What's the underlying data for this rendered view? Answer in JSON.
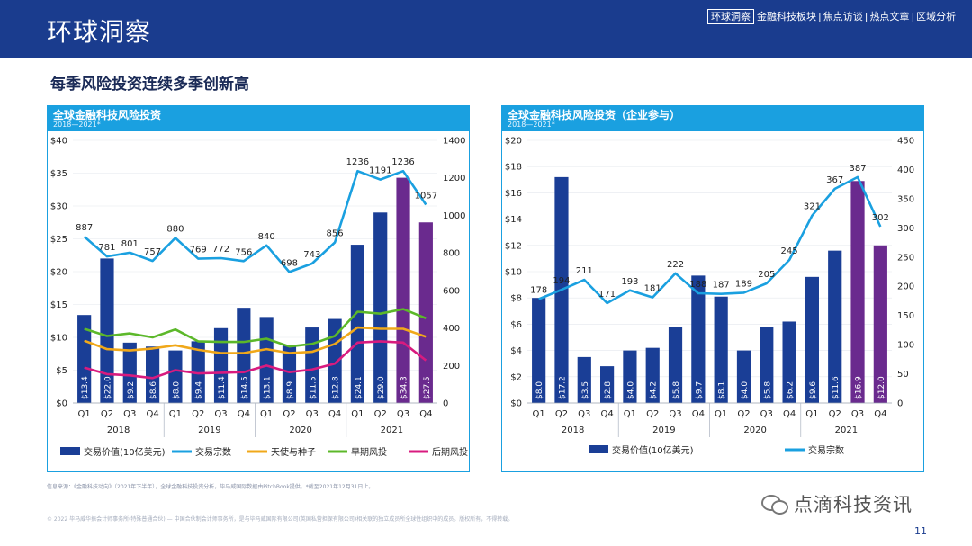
{
  "header": {
    "title": "环球洞察",
    "nav_active": "环球洞察",
    "nav_items": [
      "金融科技板块",
      "焦点访谈",
      "热点文章",
      "区域分析"
    ]
  },
  "subtitle": "每季风险投资连续多季创新高",
  "footer": {
    "note": "信息来源：《金融科技动向》（2021年下半年），全球金融科技投资分析，毕马威国际数据由PitchBook提供。*截至2021年12月31日止。",
    "copyright": "© 2022 毕马威华振会计师事务所(特殊普通合伙) — 中国合伙制会计师事务所，是与毕马威国际有限公司(英国私营担保有限公司)相关联的独立成员所全球性组织中的成员。版权所有，不得转载。",
    "page": "11",
    "watermark": "点滴科技资讯"
  },
  "chart_data": [
    {
      "type": "bar",
      "title": "全球金融科技风险投资",
      "subtitle": "2018—2021*",
      "groups": [
        {
          "year": "2018",
          "quarters": [
            "Q1",
            "Q2",
            "Q3",
            "Q4"
          ]
        },
        {
          "year": "2019",
          "quarters": [
            "Q1",
            "Q2",
            "Q3",
            "Q4"
          ]
        },
        {
          "year": "2020",
          "quarters": [
            "Q1",
            "Q2",
            "Q3",
            "Q4"
          ]
        },
        {
          "year": "2021",
          "quarters": [
            "Q1",
            "Q2",
            "Q3",
            "Q4"
          ]
        }
      ],
      "bars": {
        "name": "交易价值(10亿美元)",
        "values": [
          13.4,
          22.0,
          9.2,
          8.6,
          8.0,
          9.4,
          11.4,
          14.5,
          13.1,
          8.9,
          11.5,
          12.8,
          24.1,
          29.0,
          34.3,
          27.5
        ],
        "labels": [
          "$13.4",
          "$22.0",
          "$9.2",
          "$8.6",
          "$8.0",
          "$9.4",
          "$11.4",
          "$14.5",
          "$13.1",
          "$8.9",
          "$11.5",
          "$12.8",
          "$24.1",
          "$29.0",
          "$34.3",
          "$27.5"
        ],
        "colors": [
          "#1a3e96",
          "#1a3e96",
          "#1a3e96",
          "#1a3e96",
          "#1a3e96",
          "#1a3e96",
          "#1a3e96",
          "#1a3e96",
          "#1a3e96",
          "#1a3e96",
          "#1a3e96",
          "#1a3e96",
          "#1a3e96",
          "#1a3e96",
          "#6a2a8e",
          "#6a2a8e"
        ]
      },
      "lines": [
        {
          "name": "交易宗数",
          "color": "#1aa0e0",
          "axis": "right",
          "values": [
            887,
            781,
            801,
            757,
            880,
            769,
            772,
            756,
            840,
            698,
            743,
            856,
            1236,
            1191,
            1236,
            1057
          ],
          "labels": [
            "887",
            "781",
            "801",
            "757",
            "880",
            "769",
            "772",
            "756",
            "840",
            "698",
            "743",
            "856",
            "1236",
            "1191",
            "1236",
            "1057"
          ]
        },
        {
          "name": "天使与种子",
          "color": "#f0a81a",
          "axis": "left",
          "values": [
            9.5,
            8.2,
            8.0,
            8.3,
            8.8,
            8.1,
            7.6,
            7.6,
            8.2,
            7.6,
            7.8,
            9.0,
            11.5,
            11.3,
            11.3,
            10.1
          ]
        },
        {
          "name": "早期风投",
          "color": "#5cb82a",
          "axis": "left",
          "values": [
            11.3,
            10.2,
            10.6,
            10.0,
            11.2,
            9.4,
            9.3,
            9.3,
            9.8,
            8.6,
            9.0,
            10.2,
            13.9,
            13.6,
            14.3,
            12.9
          ]
        },
        {
          "name": "后期风投",
          "color": "#d81b7f",
          "axis": "left",
          "values": [
            5.4,
            4.4,
            4.2,
            3.8,
            5.0,
            4.5,
            4.6,
            4.7,
            5.7,
            4.7,
            5.1,
            6.0,
            9.2,
            9.4,
            9.2,
            6.5
          ]
        }
      ],
      "y_left": {
        "ticks": [
          "$0",
          "$5",
          "$10",
          "$15",
          "$20",
          "$25",
          "$30",
          "$35",
          "$40"
        ],
        "range": [
          0,
          40
        ]
      },
      "y_right": {
        "ticks": [
          "0",
          "200",
          "400",
          "600",
          "800",
          "1000",
          "1200",
          "1400"
        ],
        "range": [
          0,
          1400
        ]
      },
      "legend": {
        "position": "bottom",
        "items": [
          {
            "name": "交易价值(10亿美元)",
            "kind": "bar",
            "color": "#1a3e96"
          },
          {
            "name": "交易宗数",
            "kind": "line",
            "color": "#1aa0e0"
          },
          {
            "name": "天使与种子",
            "kind": "line",
            "color": "#f0a81a"
          },
          {
            "name": "早期风投",
            "kind": "line",
            "color": "#5cb82a"
          },
          {
            "name": "后期风投",
            "kind": "line",
            "color": "#d81b7f"
          }
        ]
      }
    },
    {
      "type": "bar",
      "title": "全球金融科技风险投资（企业参与）",
      "subtitle": "2018—2021*",
      "groups": [
        {
          "year": "2018",
          "quarters": [
            "Q1",
            "Q2",
            "Q3",
            "Q4"
          ]
        },
        {
          "year": "2019",
          "quarters": [
            "Q1",
            "Q2",
            "Q3",
            "Q4"
          ]
        },
        {
          "year": "2020",
          "quarters": [
            "Q1",
            "Q2",
            "Q3",
            "Q4"
          ]
        },
        {
          "year": "2021",
          "quarters": [
            "Q1",
            "Q2",
            "Q3",
            "Q4"
          ]
        }
      ],
      "bars": {
        "name": "交易价值(10亿美元)",
        "values": [
          8.0,
          17.2,
          3.5,
          2.8,
          4.0,
          4.2,
          5.8,
          9.7,
          8.1,
          4.0,
          5.8,
          6.2,
          9.6,
          11.6,
          16.9,
          12.0
        ],
        "labels": [
          "$8.0",
          "$17.2",
          "$3.5",
          "$2.8",
          "$4.0",
          "$4.2",
          "$5.8",
          "$9.7",
          "$8.1",
          "$4.0",
          "$5.8",
          "$6.2",
          "$9.6",
          "$11.6",
          "$16.9",
          "$12.0"
        ],
        "colors": [
          "#1a3e96",
          "#1a3e96",
          "#1a3e96",
          "#1a3e96",
          "#1a3e96",
          "#1a3e96",
          "#1a3e96",
          "#1a3e96",
          "#1a3e96",
          "#1a3e96",
          "#1a3e96",
          "#1a3e96",
          "#1a3e96",
          "#1a3e96",
          "#6a2a8e",
          "#6a2a8e"
        ]
      },
      "lines": [
        {
          "name": "交易宗数",
          "color": "#1aa0e0",
          "axis": "right",
          "values": [
            178,
            194,
            211,
            171,
            193,
            181,
            222,
            188,
            187,
            189,
            205,
            245,
            321,
            367,
            387,
            302
          ],
          "labels": [
            "178",
            "194",
            "211",
            "171",
            "193",
            "181",
            "222",
            "188",
            "187",
            "189",
            "205",
            "245",
            "321",
            "367",
            "387",
            "302"
          ]
        }
      ],
      "y_left": {
        "ticks": [
          "$0",
          "$2",
          "$4",
          "$6",
          "$8",
          "$10",
          "$12",
          "$14",
          "$16",
          "$18",
          "$20"
        ],
        "range": [
          0,
          20
        ]
      },
      "y_right": {
        "ticks": [
          "0",
          "50",
          "100",
          "150",
          "200",
          "250",
          "300",
          "350",
          "400",
          "450"
        ],
        "range": [
          0,
          450
        ]
      },
      "legend": {
        "position": "bottom",
        "items": [
          {
            "name": "交易价值(10亿美元)",
            "kind": "bar",
            "color": "#1a3e96"
          },
          {
            "name": "交易宗数",
            "kind": "line",
            "color": "#1aa0e0"
          }
        ]
      }
    }
  ]
}
